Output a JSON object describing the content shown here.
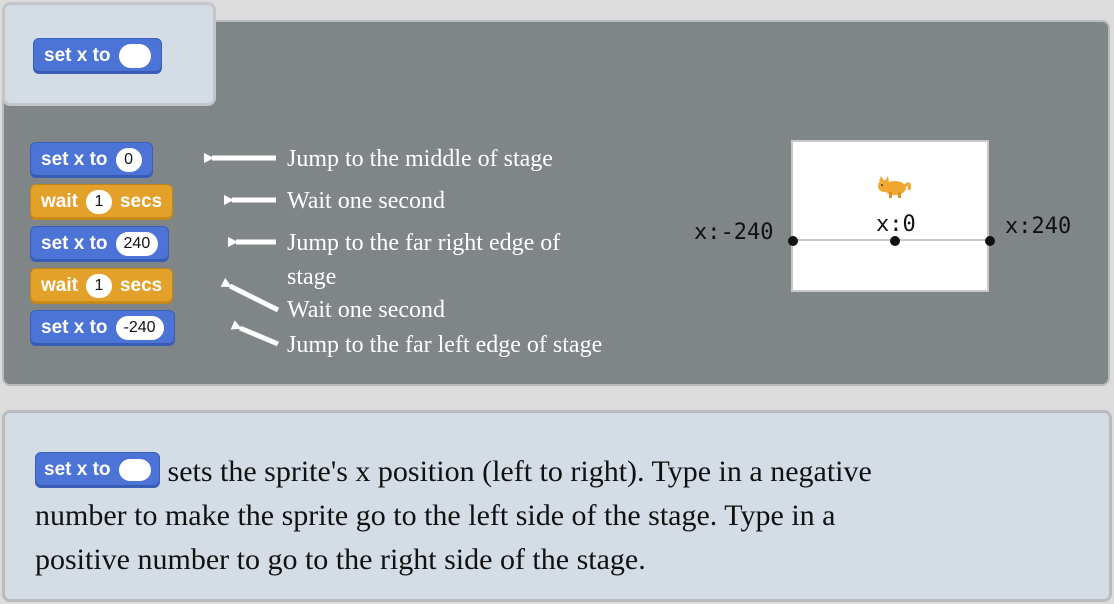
{
  "header_block": {
    "label": "set x to",
    "value": ""
  },
  "script": {
    "blocks": [
      {
        "label": "set x to",
        "value": "0",
        "kind": "motion"
      },
      {
        "label": "wait",
        "value": "1",
        "suffix": "secs",
        "kind": "control"
      },
      {
        "label": "set x to",
        "value": "240",
        "kind": "motion"
      },
      {
        "label": "wait",
        "value": "1",
        "suffix": "secs",
        "kind": "control"
      },
      {
        "label": "set x to",
        "value": "-240",
        "kind": "motion"
      }
    ],
    "notes": [
      "Jump to the middle of stage",
      "Wait one second",
      "Jump to the far right edge of",
      "stage",
      "Wait one second",
      "Jump to the far left edge of stage"
    ]
  },
  "stage": {
    "left_label": "x:-240",
    "center_label": "x:0",
    "right_label": "x:240",
    "sprite_icon": "cat-sprite-icon"
  },
  "description": {
    "block_label": "set x to",
    "line1": "sets the sprite's x position (left to right). Type in a negative",
    "line2": "number to make the sprite go to the left side of the stage. Type in a",
    "line3": "positive number to go to the right side of the stage."
  },
  "colors": {
    "motion": "#4c73d6",
    "control": "#e3a12a",
    "panel": "#808587",
    "card": "#d4dde6"
  }
}
